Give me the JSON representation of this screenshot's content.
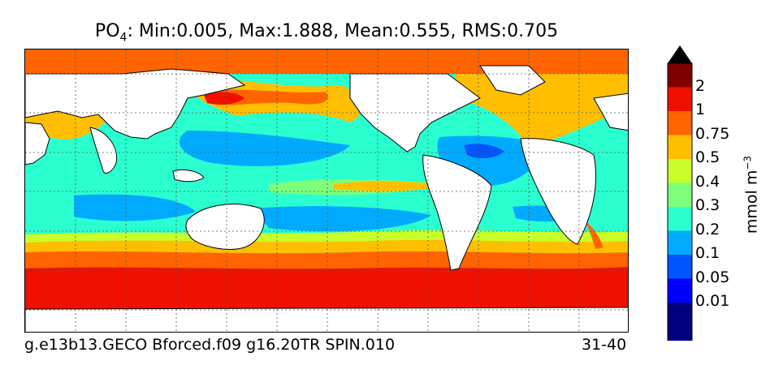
{
  "title": {
    "prefix": "PO",
    "subscript": "4",
    "stats": ": Min:0.005, Max:1.888, Mean:0.555, RMS:0.705"
  },
  "footer": {
    "case_name": "g.e13b13.GECO Bforced.f09 g16.20TR SPIN.010",
    "years": "31-40"
  },
  "colorbar": {
    "units_base": "mmol m",
    "units_exp": "−3",
    "levels": [
      {
        "label": "0.01",
        "color": "#00007f"
      },
      {
        "label": "0.05",
        "color": "#0000ff"
      },
      {
        "label": "0.1",
        "color": "#0055ff"
      },
      {
        "label": "0.2",
        "color": "#00aaff"
      },
      {
        "label": "0.3",
        "color": "#2affd0"
      },
      {
        "label": "0.4",
        "color": "#7dff7a"
      },
      {
        "label": "0.5",
        "color": "#c8ff2a"
      },
      {
        "label": "0.75",
        "color": "#ffbf00"
      },
      {
        "label": "1",
        "color": "#ff6400"
      },
      {
        "label": "2",
        "color": "#f01000"
      }
    ],
    "under_color": "#000080",
    "over_color": "#800000"
  },
  "map_colors": {
    "land": "#ffffff",
    "coast": "#000000",
    "grid": "#555555"
  }
}
